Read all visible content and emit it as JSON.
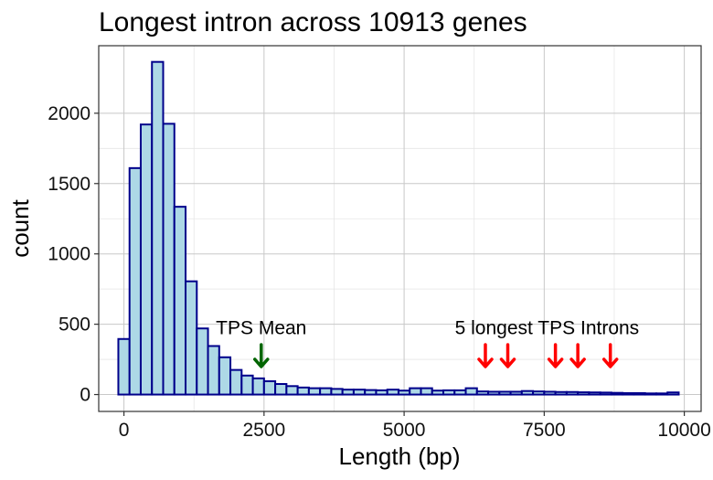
{
  "chart_data": {
    "type": "bar",
    "title": "Longest intron across 10913 genes",
    "xlabel": "Length (bp)",
    "ylabel": "count",
    "xlim": [
      -450,
      10300
    ],
    "ylim": [
      -120,
      2480
    ],
    "x_ticks": [
      0,
      2500,
      5000,
      7500,
      10000
    ],
    "x_tick_labels": [
      "0",
      "2500",
      "5000",
      "7500",
      "10000"
    ],
    "y_ticks": [
      0,
      500,
      1000,
      1500,
      2000
    ],
    "y_tick_labels": [
      "0",
      "500",
      "1000",
      "1500",
      "2000"
    ],
    "grid": true,
    "bin_width": 200,
    "bin_starts": [
      -100,
      100,
      300,
      500,
      700,
      900,
      1100,
      1300,
      1500,
      1700,
      1900,
      2100,
      2300,
      2500,
      2700,
      2900,
      3100,
      3300,
      3500,
      3700,
      3900,
      4100,
      4300,
      4500,
      4700,
      4900,
      5100,
      5300,
      5500,
      5700,
      5900,
      6100,
      6300,
      6500,
      6700,
      6900,
      7100,
      7300,
      7500,
      7700,
      7900,
      8100,
      8300,
      8500,
      8700,
      8900,
      9100,
      9300,
      9500,
      9700
    ],
    "values": [
      395,
      1610,
      1920,
      2365,
      1925,
      1335,
      805,
      470,
      345,
      265,
      175,
      135,
      115,
      95,
      75,
      60,
      50,
      45,
      45,
      40,
      35,
      35,
      32,
      30,
      35,
      28,
      45,
      45,
      28,
      30,
      30,
      45,
      22,
      20,
      20,
      20,
      25,
      22,
      20,
      18,
      18,
      16,
      15,
      14,
      12,
      10,
      10,
      8,
      8,
      15
    ],
    "bar_fill": "#add8e6",
    "bar_stroke": "#00008b",
    "annotations": [
      {
        "text": "TPS Mean",
        "x": 2450,
        "y": 430,
        "arrow_color": "#006400",
        "arrows_x": [
          2450
        ]
      },
      {
        "text": "5 longest TPS Introns",
        "x": 7550,
        "y": 430,
        "arrow_color": "#ff0000",
        "arrows_x": [
          6450,
          6850,
          7700,
          8100,
          8680
        ]
      }
    ]
  }
}
